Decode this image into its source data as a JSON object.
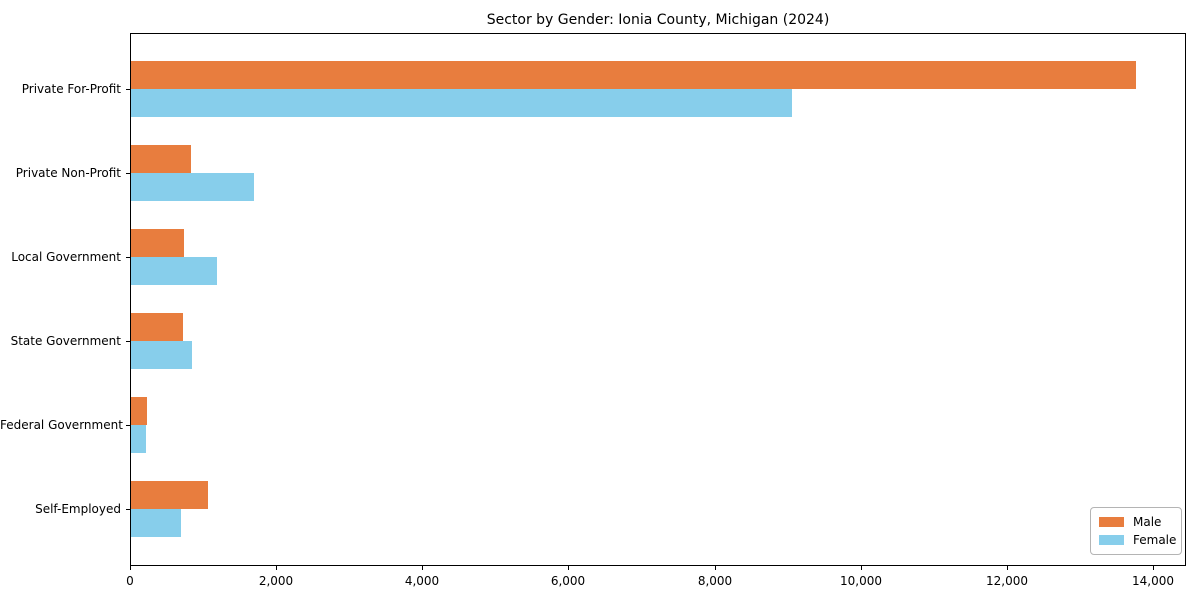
{
  "chart_data": {
    "type": "bar",
    "orientation": "horizontal",
    "title": "Sector by Gender: Ionia County, Michigan (2024)",
    "categories": [
      "Private For-Profit",
      "Private Non-Profit",
      "Local Government",
      "State Government",
      "Federal Government",
      "Self-Employed"
    ],
    "series": [
      {
        "name": "Male",
        "color": "#e87d3e",
        "values": [
          13750,
          825,
          730,
          715,
          225,
          1050
        ]
      },
      {
        "name": "Female",
        "color": "#87ceeb",
        "values": [
          9040,
          1680,
          1170,
          840,
          210,
          690
        ]
      }
    ],
    "xlim": [
      0,
      14450
    ],
    "xticks": [
      0,
      2000,
      4000,
      6000,
      8000,
      10000,
      12000,
      14000
    ],
    "xtick_labels": [
      "0",
      "2,000",
      "4,000",
      "6,000",
      "8,000",
      "10,000",
      "12,000",
      "14,000"
    ],
    "xlabel": "",
    "ylabel": "",
    "grid": false,
    "legend_position": "lower right"
  }
}
